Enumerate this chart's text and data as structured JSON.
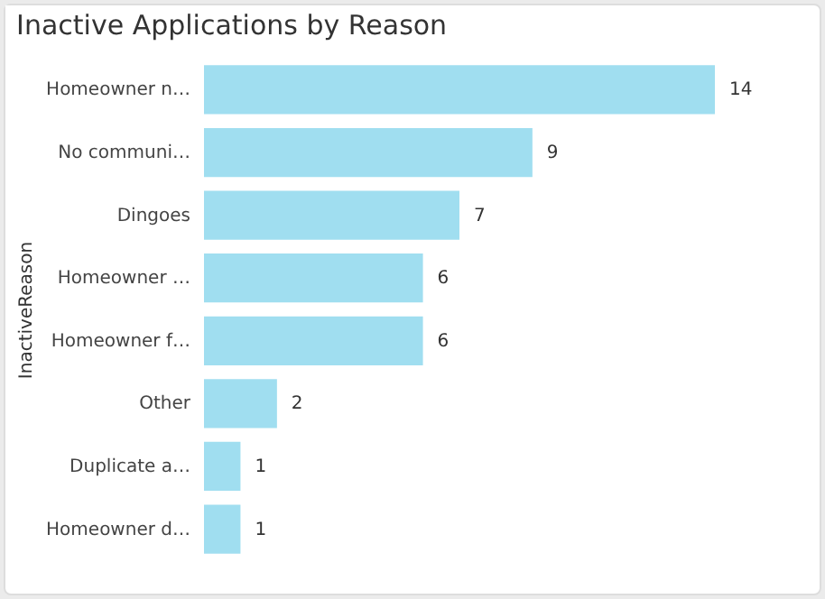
{
  "chart_data": {
    "type": "bar",
    "title": "Inactive Applications by Reason",
    "ylabel": "InactiveReason",
    "orientation": "horizontal",
    "categories": [
      "Homeowner n…",
      "No communi…",
      "Dingoes",
      "Homeowner …",
      "Homeowner f…",
      "Other",
      "Duplicate a…",
      "Homeowner d…"
    ],
    "values": [
      14,
      9,
      7,
      6,
      6,
      2,
      1,
      1
    ],
    "color": "#a0def0",
    "data_labels": true
  }
}
